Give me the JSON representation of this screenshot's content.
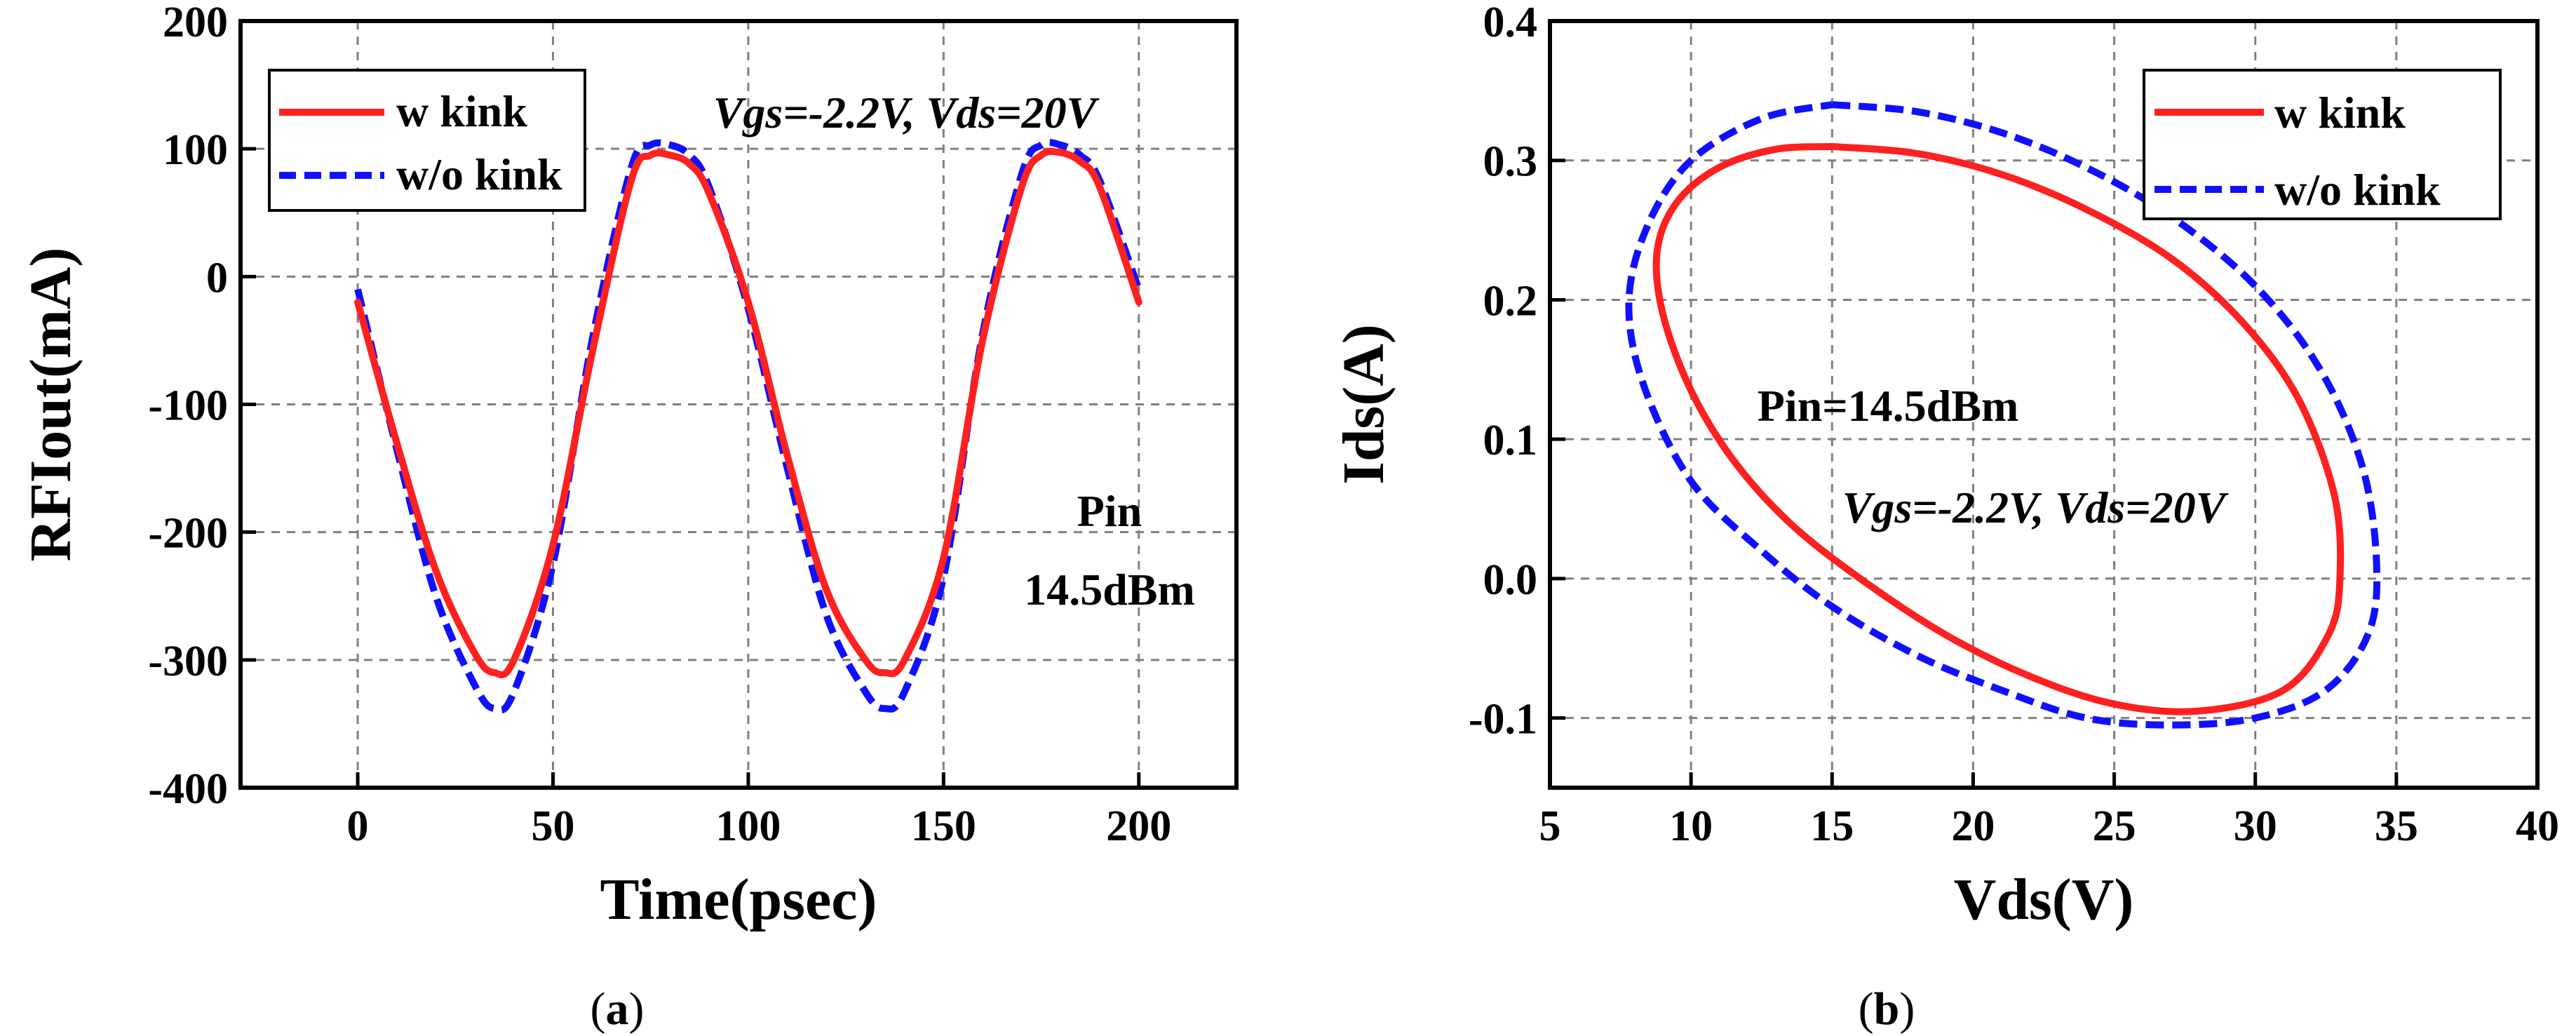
{
  "chart_data": [
    {
      "type": "line",
      "panel_label": "(a)",
      "xlabel": "Time(psec)",
      "ylabel": "RFIout(mA)",
      "xlim": [
        -30,
        225
      ],
      "ylim": [
        -400,
        200
      ],
      "xticks": [
        0,
        50,
        100,
        150,
        200
      ],
      "xtick_labels": [
        "0",
        "50",
        "100",
        "150",
        "200"
      ],
      "yticks": [
        200,
        100,
        0,
        -100,
        -200,
        -300,
        -400
      ],
      "ytick_labels": [
        "200",
        "100",
        "0",
        "-100",
        "-200",
        "-300",
        "-400"
      ],
      "grid": true,
      "legend_position": "top-left",
      "annotations": {
        "bias": "Vgs=-2.2V, Vds=20V",
        "pin_line1": "Pin",
        "pin_line2": "14.5dBm"
      },
      "series": [
        {
          "name": "w kink",
          "color": "#ff2020",
          "style": "solid",
          "x": [
            0,
            10,
            20,
            30,
            35,
            40,
            50,
            60,
            70,
            75,
            80,
            85,
            90,
            100,
            110,
            120,
            130,
            135,
            140,
            150,
            160,
            170,
            175,
            180,
            185,
            190,
            200
          ],
          "y": [
            -20,
            -130,
            -230,
            -295,
            -310,
            -300,
            -210,
            -60,
            75,
            95,
            95,
            88,
            65,
            -20,
            -140,
            -245,
            -300,
            -310,
            -300,
            -220,
            -50,
            70,
            95,
            97,
            90,
            70,
            -20
          ]
        },
        {
          "name": "w/o kink",
          "color": "#1010ff",
          "style": "dashed",
          "x": [
            0,
            10,
            20,
            30,
            35,
            40,
            50,
            60,
            70,
            75,
            80,
            85,
            90,
            100,
            110,
            120,
            130,
            135,
            140,
            150,
            160,
            170,
            175,
            180,
            185,
            190,
            200
          ],
          "y": [
            -10,
            -135,
            -250,
            -320,
            -338,
            -325,
            -225,
            -50,
            85,
            103,
            103,
            95,
            70,
            -25,
            -150,
            -265,
            -325,
            -338,
            -325,
            -235,
            -45,
            80,
            103,
            103,
            95,
            75,
            -10
          ]
        }
      ]
    },
    {
      "type": "line",
      "panel_label": "(b)",
      "xlabel": "Vds(V)",
      "ylabel": "Ids(A)",
      "xlim": [
        5,
        40
      ],
      "ylim": [
        -0.15,
        0.4
      ],
      "xticks": [
        5,
        10,
        15,
        20,
        25,
        30,
        35,
        40
      ],
      "xtick_labels": [
        "5",
        "10",
        "15",
        "20",
        "25",
        "30",
        "35",
        "40"
      ],
      "yticks": [
        0.4,
        0.3,
        0.2,
        0.1,
        0.0,
        -0.1
      ],
      "ytick_labels": [
        "0.4",
        "0.3",
        "0.2",
        "0.1",
        "0.0",
        "-0.1"
      ],
      "grid": true,
      "legend_position": "top-right",
      "annotations": {
        "pin": "Pin=14.5dBm",
        "bias": "Vgs=-2.2V, Vds=20V"
      },
      "series": [
        {
          "name": "w kink",
          "color": "#ff2020",
          "style": "solid",
          "x": [
            15.0,
            18.0,
            21.0,
            24.0,
            27.0,
            29.5,
            31.5,
            32.8,
            33.0,
            32.6,
            31.0,
            28.0,
            25.0,
            22.0,
            19.0,
            16.0,
            13.5,
            11.5,
            10.0,
            9.0,
            8.8,
            9.5,
            11.0,
            13.0,
            15.0
          ],
          "y": [
            0.31,
            0.305,
            0.29,
            0.265,
            0.23,
            0.185,
            0.13,
            0.06,
            0.0,
            -0.04,
            -0.08,
            -0.095,
            -0.09,
            -0.07,
            -0.04,
            0.0,
            0.04,
            0.085,
            0.135,
            0.19,
            0.235,
            0.27,
            0.295,
            0.308,
            0.31
          ]
        },
        {
          "name": "w/o kink",
          "color": "#1010ff",
          "style": "dashed",
          "x": [
            15.0,
            18.0,
            21.0,
            24.0,
            27.0,
            30.0,
            32.3,
            33.8,
            34.3,
            34.0,
            32.5,
            30.0,
            27.0,
            24.0,
            21.0,
            18.0,
            15.0,
            12.5,
            10.0,
            8.3,
            7.8,
            8.5,
            10.0,
            12.5,
            15.0
          ],
          "y": [
            0.34,
            0.335,
            0.32,
            0.295,
            0.26,
            0.21,
            0.15,
            0.08,
            0.01,
            -0.04,
            -0.08,
            -0.1,
            -0.105,
            -0.1,
            -0.08,
            -0.055,
            -0.02,
            0.02,
            0.07,
            0.14,
            0.2,
            0.255,
            0.3,
            0.33,
            0.34
          ]
        }
      ]
    }
  ]
}
